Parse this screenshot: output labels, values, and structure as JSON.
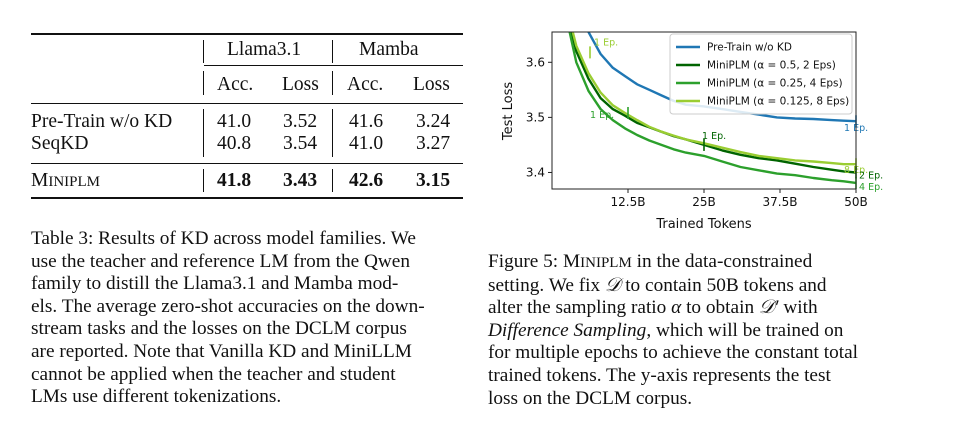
{
  "table": {
    "group_headers": [
      "Llama3.1",
      "Mamba"
    ],
    "col_headers": [
      "Acc.",
      "Loss",
      "Acc.",
      "Loss"
    ],
    "rows": [
      {
        "method": "Pre-Train w/o KD",
        "values": [
          "41.0",
          "3.52",
          "41.6",
          "3.24"
        ]
      },
      {
        "method": "SeqKD",
        "values": [
          "40.8",
          "3.54",
          "41.0",
          "3.27"
        ]
      }
    ],
    "ours": {
      "method_first": "M",
      "method_rest": "INI",
      "method_tail": "PLM",
      "values": [
        "41.8",
        "3.43",
        "42.6",
        "3.15"
      ]
    }
  },
  "table_caption": {
    "lines": [
      "Table 3: Results of KD across model families. We",
      "use the teacher and reference LM from the Qwen",
      "family to distill the Llama3.1 and Mamba mod-",
      "els. The average zero-shot accuracies on the down-",
      "stream tasks and the losses on the DCLM corpus",
      "are reported. Note that Vanilla KD and MiniLLM",
      "cannot be applied when the teacher and student",
      "LMs use different tokenizations."
    ]
  },
  "figure_caption": {
    "line1_prefix": "Figure 5: ",
    "line1_sc_first": "M",
    "line1_sc_rest": "INI",
    "line1_sc_tail": "PLM",
    "line1_suffix": " in the data-constrained",
    "line2_a": "setting.  We fix ",
    "line2_sym": "𝒟",
    "line2_b": " to contain 50B tokens and",
    "line3_a": "alter the sampling ratio ",
    "line3_alpha": "α",
    "line3_b": " to obtain ",
    "line3_sym": "𝒟′",
    "line3_c": " with",
    "line4_em": "Difference Sampling",
    "line4_rest": ", which will be trained on",
    "line5": "for multiple epochs to achieve the constant total",
    "line6": "trained tokens.  The y-axis represents the test",
    "line7": "loss on the DCLM corpus."
  },
  "chart_data": {
    "type": "line",
    "xlabel": "Trained Tokens",
    "ylabel": "Test Loss",
    "xlim": [
      0,
      50
    ],
    "ylim": [
      3.37,
      3.655
    ],
    "xticks": [
      12.5,
      25,
      37.5,
      50
    ],
    "xtick_labels": [
      "12.5B",
      "25B",
      "37.5B",
      "50B"
    ],
    "yticks": [
      3.4,
      3.5,
      3.6
    ],
    "ytick_labels": [
      "3.4",
      "3.5",
      "3.6"
    ],
    "grid": false,
    "legend_position": "top-right",
    "series": [
      {
        "name": "Pre-Train w/o KD",
        "color": "#1f77b4",
        "x": [
          2,
          4,
          6,
          8,
          10,
          12,
          14,
          16,
          18,
          20,
          22,
          25,
          28,
          31,
          34,
          37,
          40,
          43,
          46,
          48,
          50
        ],
        "y": [
          3.775,
          3.705,
          3.655,
          3.615,
          3.59,
          3.575,
          3.56,
          3.55,
          3.54,
          3.53,
          3.523,
          3.52,
          3.515,
          3.51,
          3.505,
          3.5,
          3.498,
          3.497,
          3.495,
          3.494,
          3.493
        ]
      },
      {
        "name": "MiniPLM (α = 0.5, 2 Eps)",
        "color": "#006400",
        "x": [
          2,
          4,
          6,
          8,
          10,
          12,
          14,
          16,
          18,
          20,
          22,
          25,
          28,
          31,
          34,
          37,
          40,
          43,
          46,
          48,
          50
        ],
        "y": [
          3.71,
          3.62,
          3.57,
          3.535,
          3.515,
          3.503,
          3.49,
          3.482,
          3.474,
          3.466,
          3.46,
          3.45,
          3.44,
          3.432,
          3.426,
          3.422,
          3.416,
          3.41,
          3.405,
          3.402,
          3.4
        ]
      },
      {
        "name": "MiniPLM (α = 0.25, 4 Eps)",
        "color": "#2ca02c",
        "x": [
          2,
          4,
          6,
          8,
          10,
          12,
          14,
          16,
          18,
          20,
          22,
          25,
          28,
          31,
          34,
          37,
          40,
          43,
          46,
          48,
          50
        ],
        "y": [
          3.7,
          3.6,
          3.548,
          3.515,
          3.495,
          3.48,
          3.468,
          3.458,
          3.45,
          3.442,
          3.436,
          3.43,
          3.42,
          3.41,
          3.404,
          3.398,
          3.395,
          3.39,
          3.386,
          3.384,
          3.381
        ]
      },
      {
        "name": "MiniPLM (α = 0.125, 8 Eps)",
        "color": "#9acd32",
        "x": [
          2,
          4,
          6,
          8,
          10,
          12,
          14,
          16,
          18,
          20,
          22,
          25,
          28,
          31,
          34,
          37,
          40,
          43,
          46,
          48,
          50
        ],
        "y": [
          3.715,
          3.63,
          3.58,
          3.545,
          3.522,
          3.508,
          3.495,
          3.483,
          3.474,
          3.467,
          3.46,
          3.453,
          3.445,
          3.437,
          3.43,
          3.426,
          3.422,
          3.42,
          3.417,
          3.415,
          3.415
        ]
      }
    ],
    "annotations": [
      {
        "text": "1 Ep.",
        "x": 6.25,
        "y": 3.618,
        "color": "#9acd32"
      },
      {
        "text": "1 Ep.",
        "x": 12.5,
        "y": 3.508,
        "color": "#2ca02c"
      },
      {
        "text": "1 Ep.",
        "x": 25,
        "y": 3.45,
        "color": "#006400"
      },
      {
        "text": "1 Ep.",
        "x": 50,
        "y": 3.493,
        "color": "#1f77b4"
      },
      {
        "text": "8 Ep.",
        "x": 50,
        "y": 3.415,
        "color": "#9acd32"
      },
      {
        "text": "2 Ep.",
        "x": 50,
        "y": 3.4,
        "color": "#006400"
      },
      {
        "text": "4 Ep.",
        "x": 50,
        "y": 3.381,
        "color": "#2ca02c"
      }
    ]
  }
}
